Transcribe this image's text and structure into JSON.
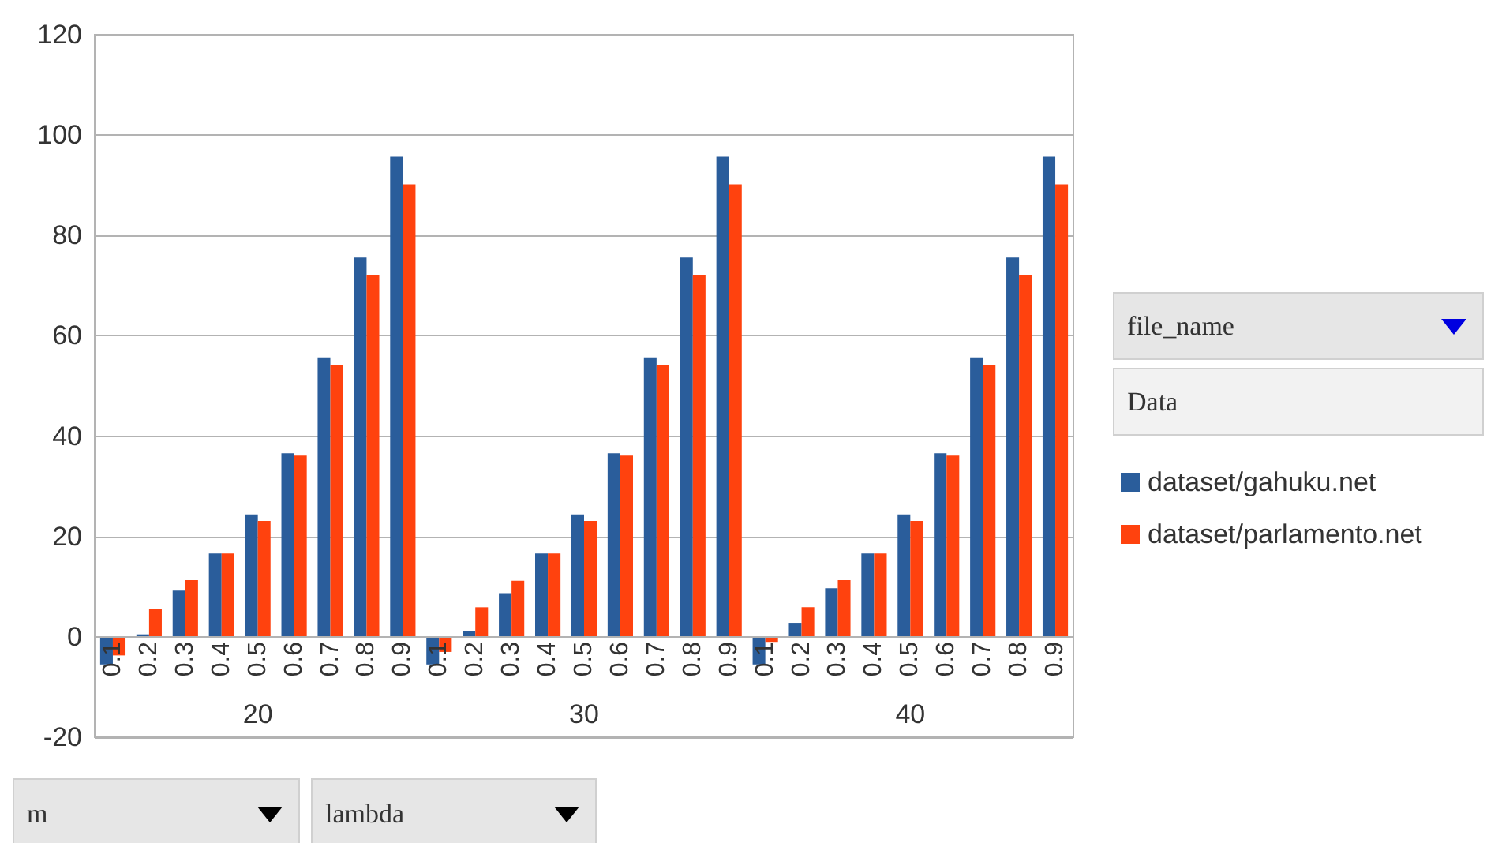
{
  "chart_data": {
    "type": "bar",
    "categories": [
      "0.1",
      "0.2",
      "0.3",
      "0.4",
      "0.5",
      "0.6",
      "0.7",
      "0.8",
      "0.9",
      "0.1",
      "0.2",
      "0.3",
      "0.4",
      "0.5",
      "0.6",
      "0.7",
      "0.8",
      "0.9",
      "0.1",
      "0.2",
      "0.3",
      "0.4",
      "0.5",
      "0.6",
      "0.7",
      "0.8",
      "0.9"
    ],
    "series": [
      {
        "name": "dataset/gahuku.net",
        "color": "#2a5d9b",
        "values": [
          -5.5,
          0.5,
          9.2,
          16.6,
          24.4,
          36.6,
          55.7,
          75.6,
          95.7,
          -5.5,
          1.1,
          8.7,
          16.6,
          24.4,
          36.6,
          55.7,
          75.6,
          95.7,
          -5.5,
          2.8,
          9.7,
          16.6,
          24.4,
          36.6,
          55.7,
          75.6,
          95.7
        ]
      },
      {
        "name": "dataset/parlamento.net",
        "color": "#ff420e",
        "values": [
          -3.7,
          5.5,
          11.3,
          16.6,
          23.1,
          36.1,
          54.1,
          72.1,
          90.2,
          -3,
          5.9,
          11.2,
          16.6,
          23.1,
          36.1,
          54.1,
          72.1,
          90.2,
          -1,
          5.9,
          11.3,
          16.6,
          23.1,
          36.1,
          54.1,
          72.1,
          90.2
        ]
      }
    ],
    "ylim": [
      -20,
      120
    ],
    "yticks": [
      -20,
      0,
      20,
      40,
      60,
      80,
      100,
      120
    ],
    "grid": "y",
    "legend": "right",
    "annotations": [
      "20",
      "30",
      "40",
      "file_name",
      "Data",
      "m",
      "lambda"
    ]
  }
}
